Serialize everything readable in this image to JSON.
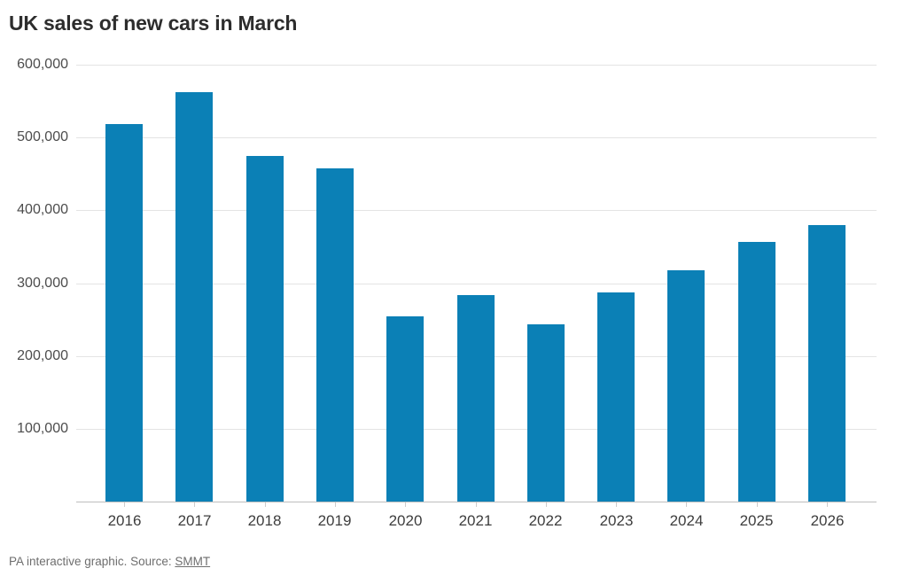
{
  "chart": {
    "title": "UK sales of new cars in March"
  },
  "chart_data": {
    "type": "bar",
    "title": "UK sales of new cars in March",
    "categories": [
      "2016",
      "2017",
      "2018",
      "2019",
      "2020",
      "2021",
      "2022",
      "2023",
      "2024",
      "2025",
      "2026"
    ],
    "values": [
      518707,
      562337,
      474069,
      458054,
      254684,
      283964,
      243479,
      287825,
      317786,
      357103,
      380000
    ],
    "xlabel": "",
    "ylabel": "",
    "ylim": [
      0,
      600000
    ],
    "ytick_values": [
      100000,
      200000,
      300000,
      400000,
      500000,
      600000
    ],
    "ytick_labels": [
      "100,000",
      "200,000",
      "300,000",
      "400,000",
      "500,000",
      "600,000"
    ],
    "grid": "horizontal",
    "legend": "none",
    "bar_color": "#0b80b6",
    "gridline_color": "#e4e4e4",
    "axis_line_color": "#bdbdbd"
  },
  "footer": {
    "credit_prefix": "PA interactive graphic. Source: ",
    "source_link": "SMMT"
  }
}
